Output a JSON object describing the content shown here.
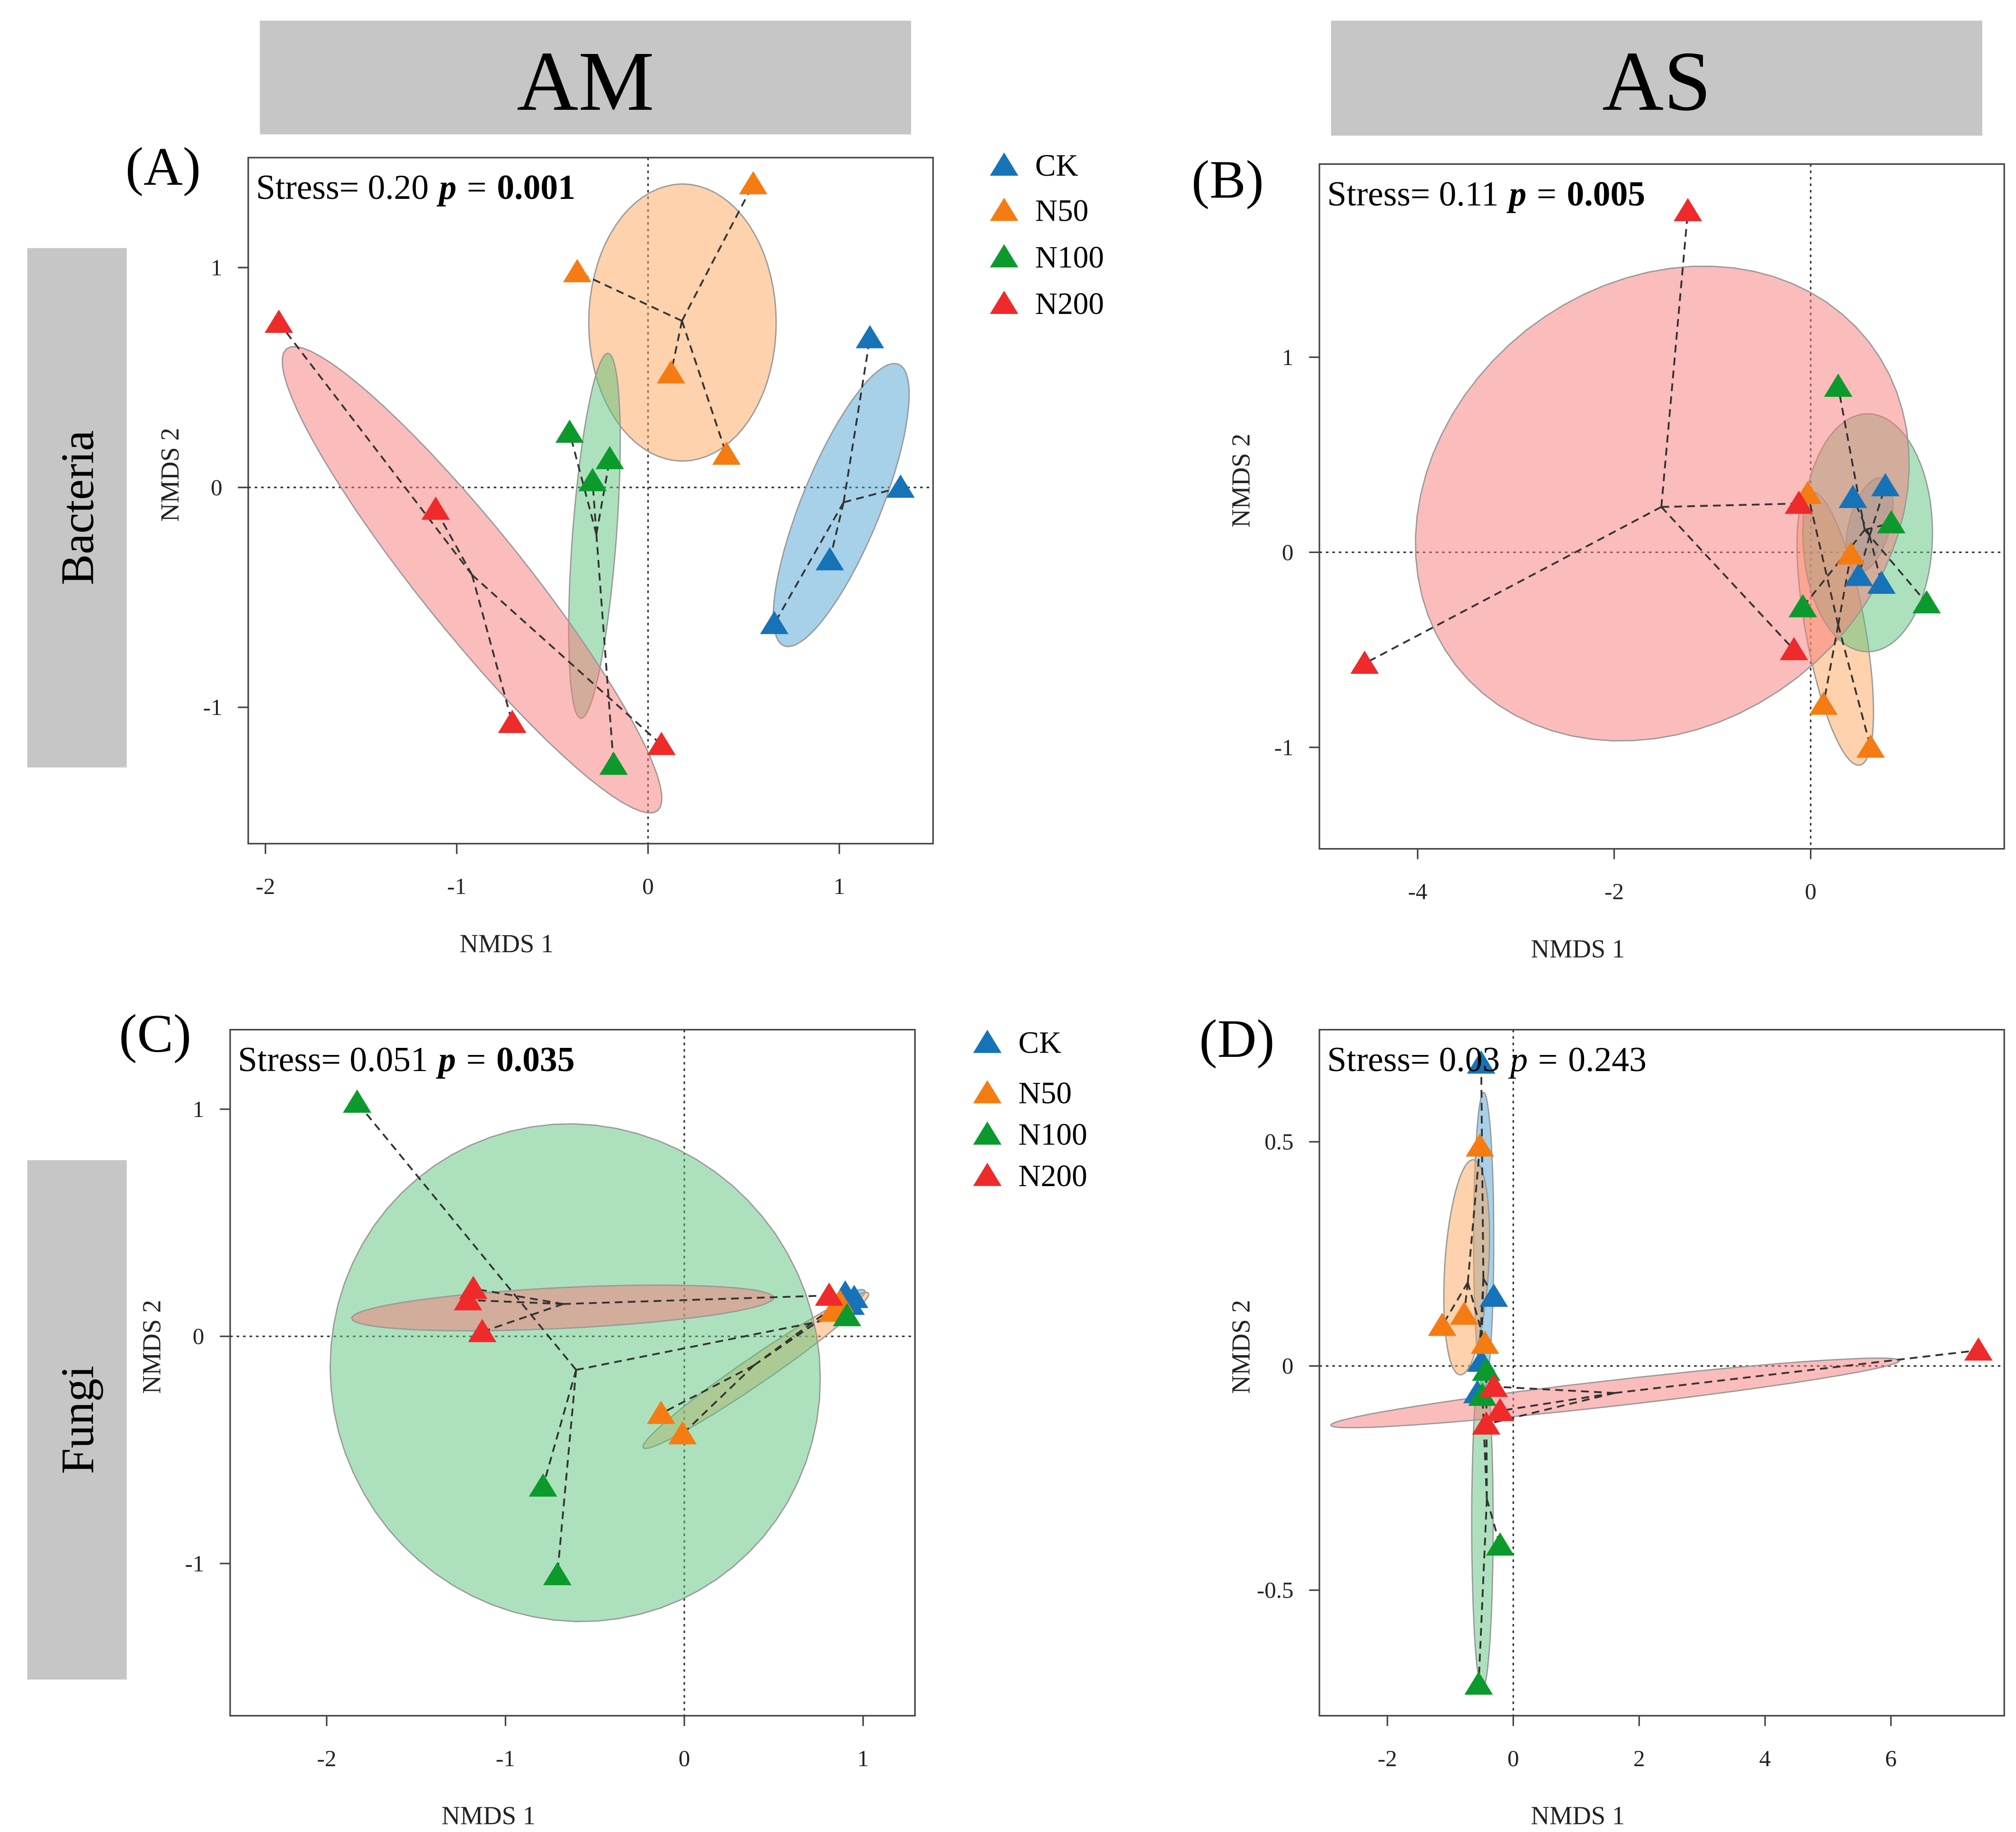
{
  "headers": {
    "am": "AM",
    "as": "AS"
  },
  "row_labels": {
    "bacteria": "Bacteria",
    "fungi": "Fungi"
  },
  "eq": "=",
  "legend": {
    "items": [
      {
        "label": "CK",
        "color": "#1673b8",
        "fill": "#4ea3d3"
      },
      {
        "label": "N50",
        "color": "#f57c12",
        "fill": "#fca65a"
      },
      {
        "label": "N100",
        "color": "#0c9a2c",
        "fill": "#5cc47c"
      },
      {
        "label": "N200",
        "color": "#ee2a2a",
        "fill": "#f77a7a"
      }
    ]
  },
  "chart_data": [
    {
      "panel": "(A)",
      "type": "scatter",
      "xlabel": "NMDS 1",
      "ylabel": "NMDS 2",
      "stress_label": "Stress= 0.20",
      "p_label": "p",
      "p_value": "0.001",
      "p_significant": true,
      "xlim": [
        -2.09,
        1.49
      ],
      "ylim": [
        -1.62,
        1.5
      ],
      "grid": false,
      "xticks": [
        -2,
        -1,
        0,
        1
      ],
      "yticks": [
        -1,
        0,
        1
      ],
      "groups": [
        {
          "name": "CK",
          "points": [
            [
              1.16,
              0.68
            ],
            [
              1.32,
              0.0
            ],
            [
              0.95,
              -0.33
            ],
            [
              0.66,
              -0.62
            ]
          ],
          "ellipse": {
            "center": [
              1.01,
              -0.08
            ],
            "a": [
              0.3,
              0.64
            ],
            "b": [
              0.19,
              -0.07
            ]
          }
        },
        {
          "name": "N50",
          "points": [
            [
              0.55,
              1.38
            ],
            [
              -0.37,
              0.98
            ],
            [
              0.12,
              0.52
            ],
            [
              0.41,
              0.15
            ]
          ],
          "ellipse": {
            "center": [
              0.18,
              0.75
            ],
            "a": [
              0.49,
              0.0
            ],
            "b": [
              0.0,
              0.63
            ]
          }
        },
        {
          "name": "N100",
          "points": [
            [
              -0.41,
              0.25
            ],
            [
              -0.2,
              0.13
            ],
            [
              -0.29,
              0.03
            ],
            [
              -0.18,
              -1.26
            ]
          ],
          "ellipse": {
            "center": [
              -0.28,
              -0.22
            ],
            "a": [
              0.07,
              0.83
            ],
            "b": [
              0.115,
              0.0
            ]
          }
        },
        {
          "name": "N200",
          "points": [
            [
              -1.93,
              0.75
            ],
            [
              -1.11,
              -0.1
            ],
            [
              -0.71,
              -1.07
            ],
            [
              0.07,
              -1.17
            ]
          ],
          "ellipse": {
            "center": [
              -0.92,
              -0.42
            ],
            "a": [
              0.97,
              -1.05
            ],
            "b": [
              0.21,
              0.15
            ]
          }
        }
      ]
    },
    {
      "panel": "(B)",
      "type": "scatter",
      "xlabel": "NMDS 1",
      "ylabel": "NMDS 2",
      "stress_label": "Stress= 0.11",
      "p_label": "p",
      "p_value": "0.005",
      "p_significant": true,
      "xlim": [
        -5.0,
        1.97
      ],
      "ylim": [
        -1.52,
        1.99
      ],
      "grid": false,
      "xticks": [
        -4,
        -2,
        0
      ],
      "yticks": [
        -1,
        0,
        1
      ],
      "groups": [
        {
          "name": "CK",
          "points": [
            [
              0.43,
              0.28
            ],
            [
              0.76,
              0.34
            ],
            [
              0.49,
              -0.12
            ],
            [
              0.72,
              -0.16
            ]
          ],
          "ellipse": {
            "center": [
              0.6,
              0.14
            ],
            "a": [
              0.13,
              0.24
            ],
            "b": [
              0.2,
              -0.03
            ]
          }
        },
        {
          "name": "N50",
          "points": [
            [
              -0.03,
              0.3
            ],
            [
              0.41,
              -0.01
            ],
            [
              0.13,
              -0.78
            ],
            [
              0.61,
              -1.0
            ]
          ],
          "ellipse": {
            "center": [
              0.25,
              -0.39
            ],
            "a": [
              0.26,
              -0.7
            ],
            "b": [
              0.29,
              0.05
            ]
          }
        },
        {
          "name": "N100",
          "points": [
            [
              0.28,
              0.85
            ],
            [
              0.82,
              0.15
            ],
            [
              -0.08,
              -0.28
            ],
            [
              1.18,
              -0.26
            ]
          ],
          "ellipse": {
            "center": [
              0.58,
              0.1
            ],
            "a": [
              0.66,
              0.0
            ],
            "b": [
              0.0,
              0.61
            ]
          }
        },
        {
          "name": "N200",
          "points": [
            [
              -1.25,
              1.75
            ],
            [
              -4.54,
              -0.57
            ],
            [
              -0.12,
              0.25
            ],
            [
              -0.17,
              -0.5
            ]
          ],
          "ellipse": {
            "center": [
              -1.51,
              0.25
            ],
            "a": [
              2.1,
              0.83
            ],
            "b": [
              -1.38,
              0.89
            ]
          }
        }
      ]
    },
    {
      "panel": "(C)",
      "type": "scatter",
      "xlabel": "NMDS 1",
      "ylabel": "NMDS 2",
      "stress_label": "Stress= 0.051",
      "p_label": "p",
      "p_value": "0.035",
      "p_significant": true,
      "xlim": [
        -2.54,
        1.29
      ],
      "ylim": [
        -1.67,
        1.35
      ],
      "grid": false,
      "xticks": [
        -2,
        -1,
        0,
        1
      ],
      "yticks": [
        -1,
        0,
        1
      ],
      "groups": [
        {
          "name": "CK",
          "points": [
            [
              0.9,
              0.19
            ],
            [
              0.95,
              0.17
            ],
            [
              0.93,
              0.14
            ],
            [
              0.88,
              0.16
            ]
          ],
          "ellipse": {
            "center": [
              0.94,
              0.17
            ],
            "a": [
              0.07,
              0.03
            ],
            "b": [
              0.01,
              -0.02
            ]
          }
        },
        {
          "name": "N50",
          "points": [
            [
              -0.13,
              -0.34
            ],
            [
              -0.01,
              -0.43
            ],
            [
              0.83,
              0.11
            ],
            [
              0.87,
              0.15
            ]
          ],
          "ellipse": {
            "center": [
              0.4,
              -0.15
            ],
            "a": [
              0.63,
              0.34
            ],
            "b": [
              0.04,
              -0.05
            ]
          }
        },
        {
          "name": "N100",
          "points": [
            [
              -1.83,
              1.03
            ],
            [
              -0.79,
              -0.66
            ],
            [
              -0.71,
              -1.05
            ],
            [
              0.91,
              0.09
            ]
          ],
          "ellipse": {
            "center": [
              -0.61,
              -0.16
            ],
            "a": [
              -0.79,
              0.91
            ],
            "b": [
              1.12,
              0.61
            ]
          }
        },
        {
          "name": "N200",
          "points": [
            [
              -1.18,
              0.21
            ],
            [
              -1.21,
              0.16
            ],
            [
              -1.13,
              0.02
            ],
            [
              0.81,
              0.18
            ]
          ],
          "ellipse": {
            "center": [
              -0.68,
              0.125
            ],
            "a": [
              1.18,
              0.045
            ],
            "b": [
              0.0,
              0.09
            ]
          }
        }
      ]
    },
    {
      "panel": "(D)",
      "type": "scatter",
      "xlabel": "NMDS 1",
      "ylabel": "NMDS 2",
      "stress_label": "Stress= 0.03",
      "p_label": "p",
      "p_value": "0.243",
      "p_significant": false,
      "xlim": [
        -3.08,
        7.8
      ],
      "ylim": [
        -0.78,
        0.75
      ],
      "grid": false,
      "xticks": [
        -2,
        0,
        2,
        4,
        6
      ],
      "yticks": [
        -0.5,
        0,
        0.5
      ],
      "groups": [
        {
          "name": "CK",
          "points": [
            [
              -0.51,
              0.675
            ],
            [
              -0.31,
              0.155
            ],
            [
              -0.51,
              0.01
            ],
            [
              -0.57,
              -0.06
            ]
          ],
          "ellipse": {
            "center": [
              -0.47,
              0.28
            ],
            "a": [
              0.0,
              0.33
            ],
            "b": [
              0.16,
              0.0
            ]
          }
        },
        {
          "name": "N50",
          "points": [
            [
              -0.53,
              0.49
            ],
            [
              -1.13,
              0.09
            ],
            [
              -0.78,
              0.115
            ],
            [
              -0.45,
              0.05
            ]
          ],
          "ellipse": {
            "center": [
              -0.74,
              0.22
            ],
            "a": [
              0.1,
              0.24
            ],
            "b": [
              0.35,
              0.0
            ]
          }
        },
        {
          "name": "N100",
          "points": [
            [
              -0.43,
              -0.01
            ],
            [
              -0.49,
              -0.066
            ],
            [
              -0.21,
              -0.4
            ],
            [
              -0.55,
              -0.71
            ]
          ],
          "ellipse": {
            "center": [
              -0.49,
              -0.35
            ],
            "a": [
              0.0,
              0.37
            ],
            "b": [
              0.17,
              0.0
            ]
          }
        },
        {
          "name": "N200",
          "points": [
            [
              7.39,
              0.035
            ],
            [
              -0.31,
              -0.046
            ],
            [
              -0.21,
              -0.1
            ],
            [
              -0.43,
              -0.13
            ]
          ],
          "ellipse": {
            "center": [
              1.62,
              -0.06
            ],
            "a": [
              4.52,
              0.072
            ],
            "b": [
              0.0,
              0.029
            ]
          }
        }
      ]
    }
  ]
}
